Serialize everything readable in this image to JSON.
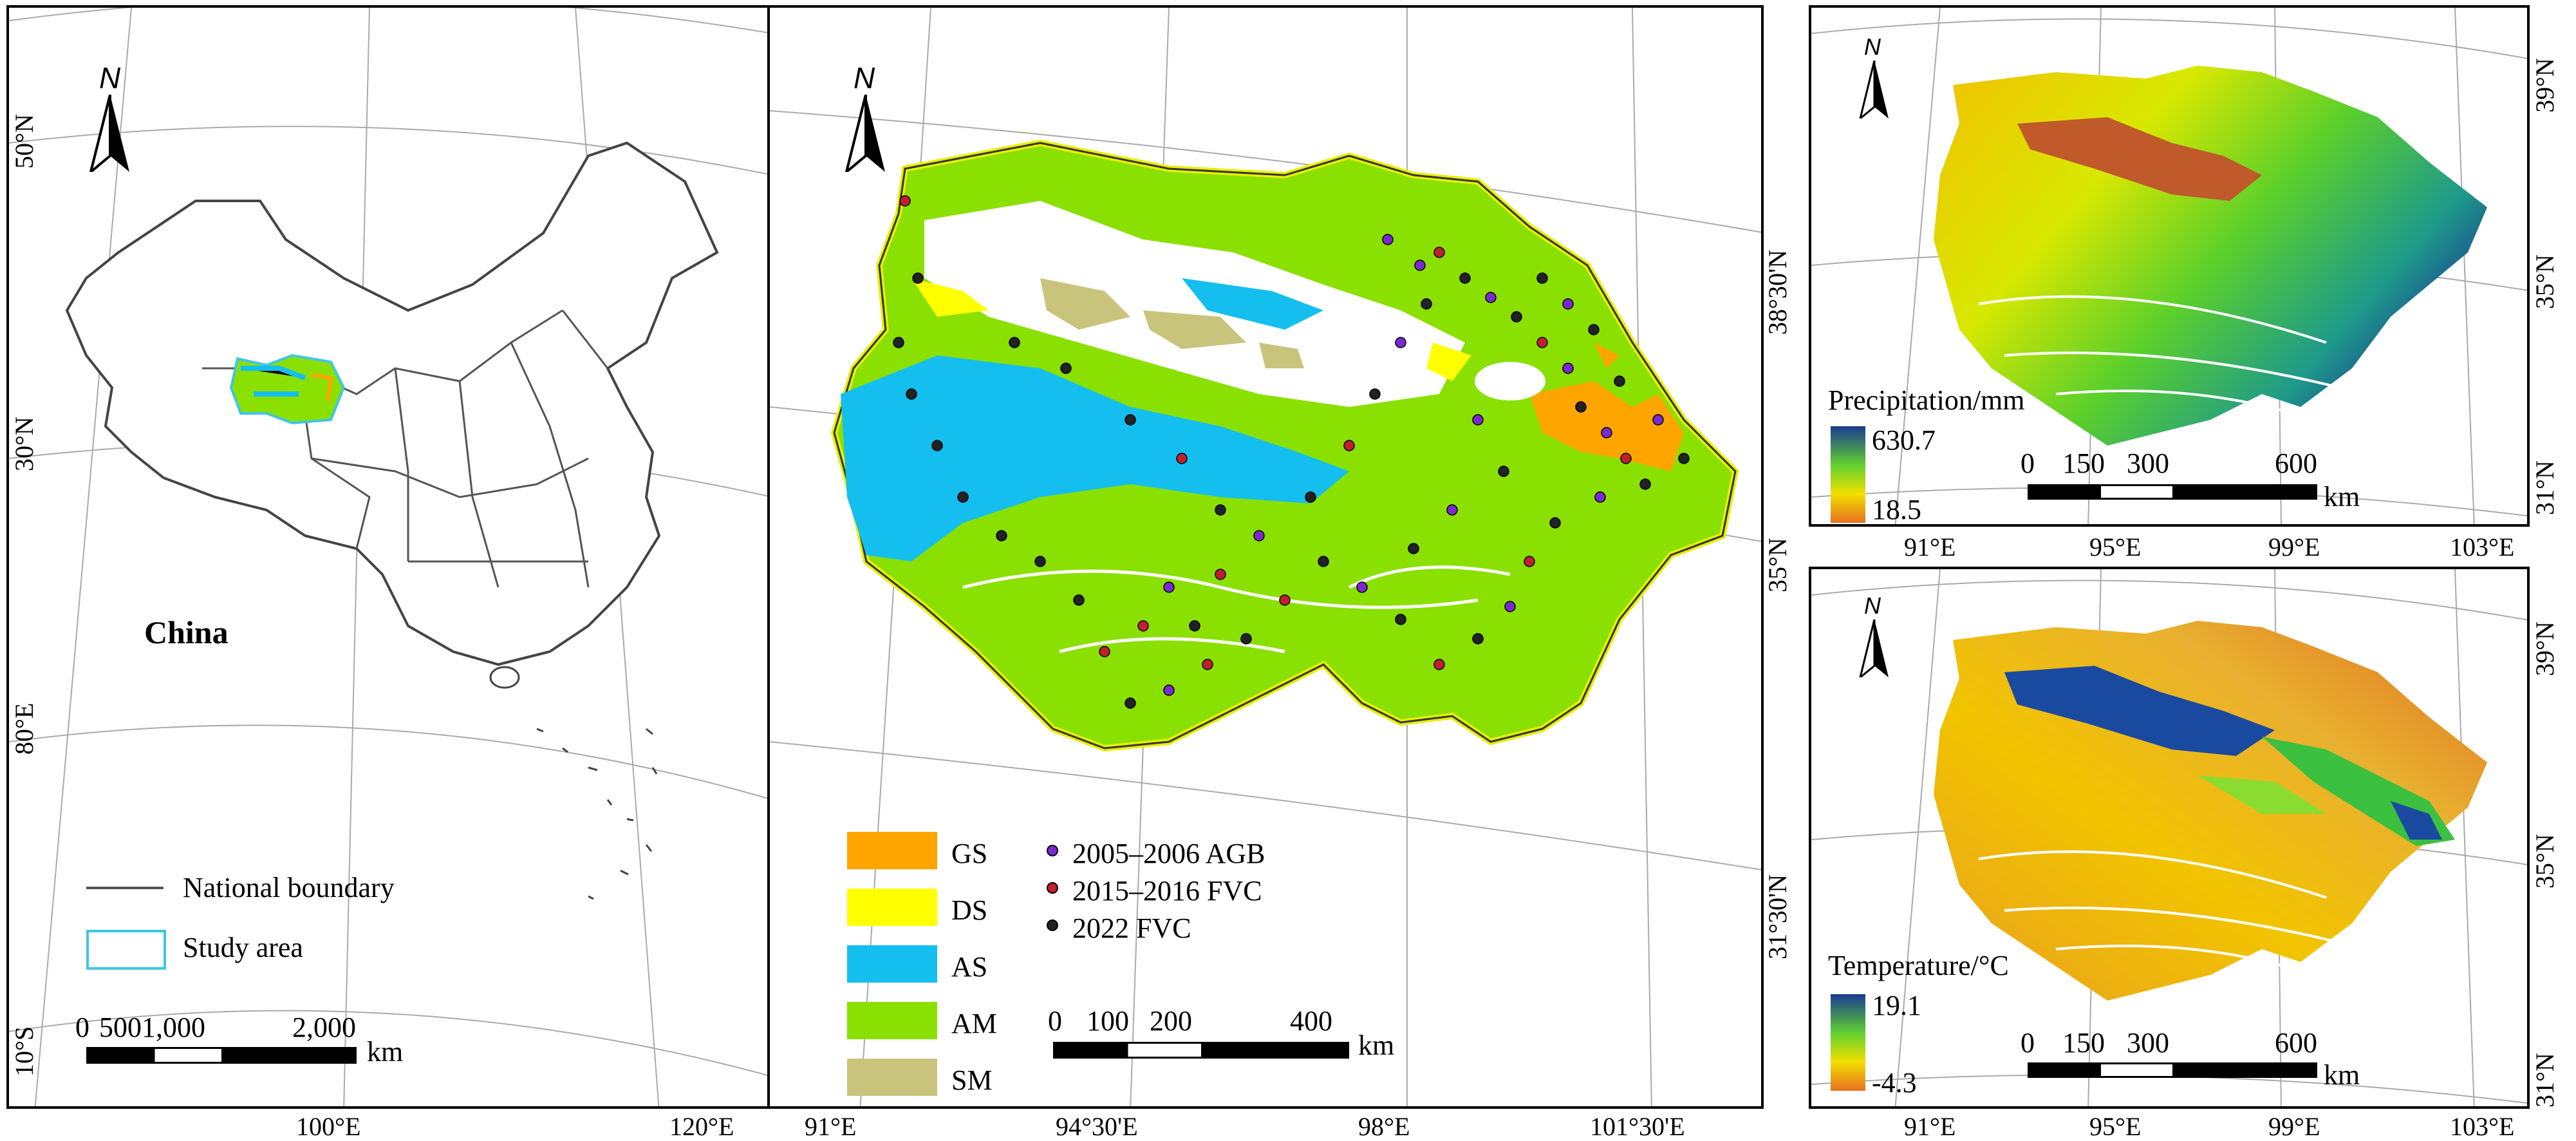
{
  "colors": {
    "GS": "#ffa500",
    "DS": "#ffff00",
    "AS": "#14bff0",
    "AM": "#8ae000",
    "SM": "#c8c47c",
    "agb": "#7a2ad0",
    "fvc1516": "#c0202a",
    "fvc2022": "#222222",
    "boundary": "#555555",
    "study": "#3fc6e6"
  },
  "panel_a": {
    "north": "N",
    "country": "China",
    "lat_labels": [
      "50°N",
      "30°N",
      "10°S"
    ],
    "lon_labels": [
      "80°E",
      "100°E",
      "120°E"
    ],
    "legend": {
      "boundary": "National boundary",
      "study": "Study area"
    },
    "scalebar": {
      "ticks": [
        "0",
        "500",
        "1,000",
        "2,000"
      ],
      "unit": "km"
    }
  },
  "panel_b": {
    "north": "N",
    "lat_labels": [
      "38°30'N",
      "35°N",
      "31°30'N"
    ],
    "lon_labels": [
      "91°E",
      "94°30'E",
      "98°E",
      "101°30'E"
    ],
    "legend_classes": [
      {
        "code": "GS",
        "color_key": "GS"
      },
      {
        "code": "DS",
        "color_key": "DS"
      },
      {
        "code": "AS",
        "color_key": "AS"
      },
      {
        "code": "AM",
        "color_key": "AM"
      },
      {
        "code": "SM",
        "color_key": "SM"
      }
    ],
    "legend_points": [
      {
        "label": "2005–2006 AGB",
        "color_key": "agb"
      },
      {
        "label": "2015–2016 FVC",
        "color_key": "fvc1516"
      },
      {
        "label": "2022 FVC",
        "color_key": "fvc2022"
      }
    ],
    "scalebar": {
      "ticks": [
        "0",
        "100",
        "200",
        "400"
      ],
      "unit": "km"
    }
  },
  "panel_c": {
    "north": "N",
    "title": "Precipitation/mm",
    "max": "630.7",
    "min": "18.5",
    "lat_labels": [
      "39°N",
      "35°N",
      "31°N"
    ],
    "lon_labels": [
      "91°E",
      "95°E",
      "99°E",
      "103°E"
    ],
    "scalebar": {
      "ticks": [
        "0",
        "150",
        "300",
        "600"
      ],
      "unit": "km"
    }
  },
  "panel_d": {
    "north": "N",
    "title": "Temperature/°C",
    "max": "19.1",
    "min": "-4.3",
    "lat_labels": [
      "39°N",
      "35°N",
      "31°N"
    ],
    "lon_labels": [
      "91°E",
      "95°E",
      "99°E",
      "103°E"
    ],
    "scalebar": {
      "ticks": [
        "0",
        "150",
        "300",
        "600"
      ],
      "unit": "km"
    }
  }
}
